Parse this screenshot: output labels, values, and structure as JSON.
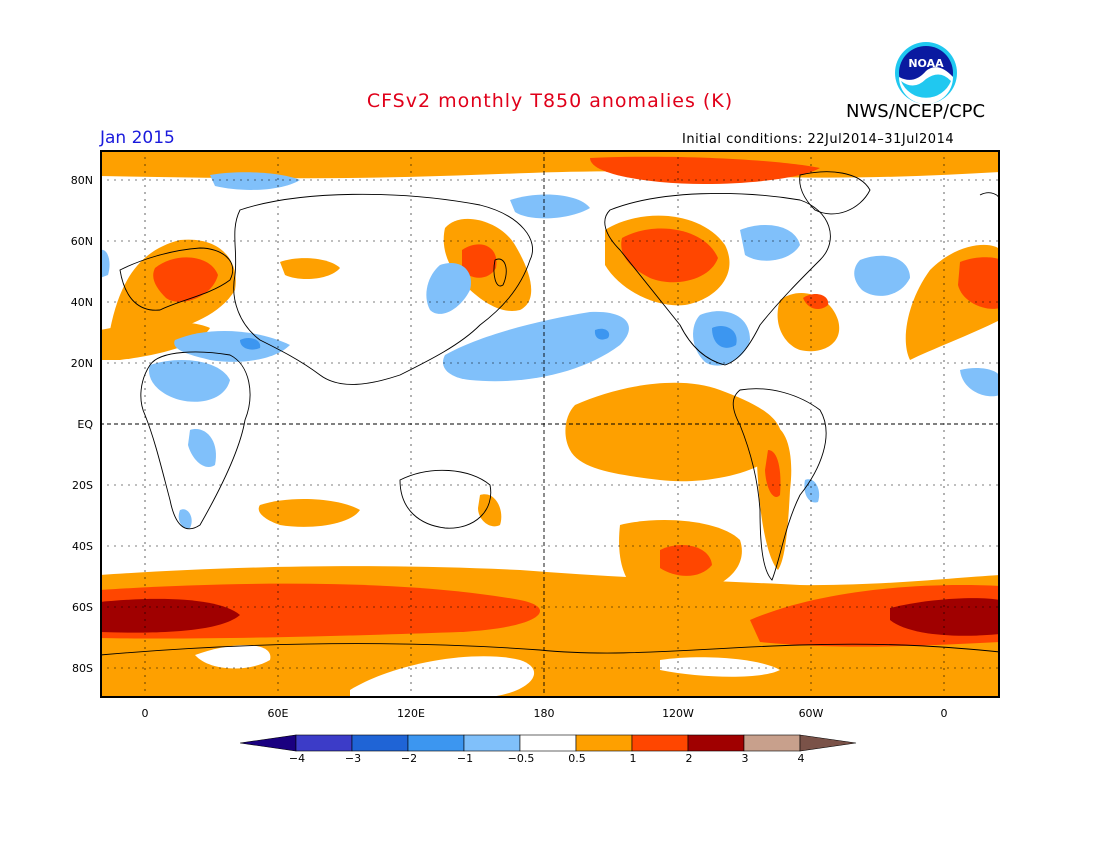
{
  "title": "CFSv2 monthly T850 anomalies (K)",
  "agency": "NWS/NCEP/CPC",
  "logo_text": "NOAA",
  "month": "Jan 2015",
  "initial_conditions": "Initial conditions: 22Jul2014–31Jul2014",
  "lat_labels": [
    "80N",
    "60N",
    "40N",
    "20N",
    "EQ",
    "20S",
    "40S",
    "60S",
    "80S"
  ],
  "lon_labels": [
    "0",
    "60E",
    "120E",
    "180",
    "120W",
    "60W",
    "0"
  ],
  "colorbar": {
    "labels": [
      "−4",
      "−3",
      "−2",
      "−1",
      "−0.5",
      "0.5",
      "1",
      "2",
      "3",
      "4"
    ],
    "colors": [
      "#1a0080",
      "#3c3cc8",
      "#1f64d6",
      "#3c96f0",
      "#80c0fa",
      "#ffffff",
      "#fea000",
      "#ff4600",
      "#a00000",
      "#c8a08c",
      "#7a5248"
    ]
  },
  "anomaly_colors": {
    "light_blue": "#80c0fa",
    "blue": "#3c96f0",
    "orange": "#fea000",
    "red": "#ff4600",
    "dark_red": "#a00000"
  }
}
